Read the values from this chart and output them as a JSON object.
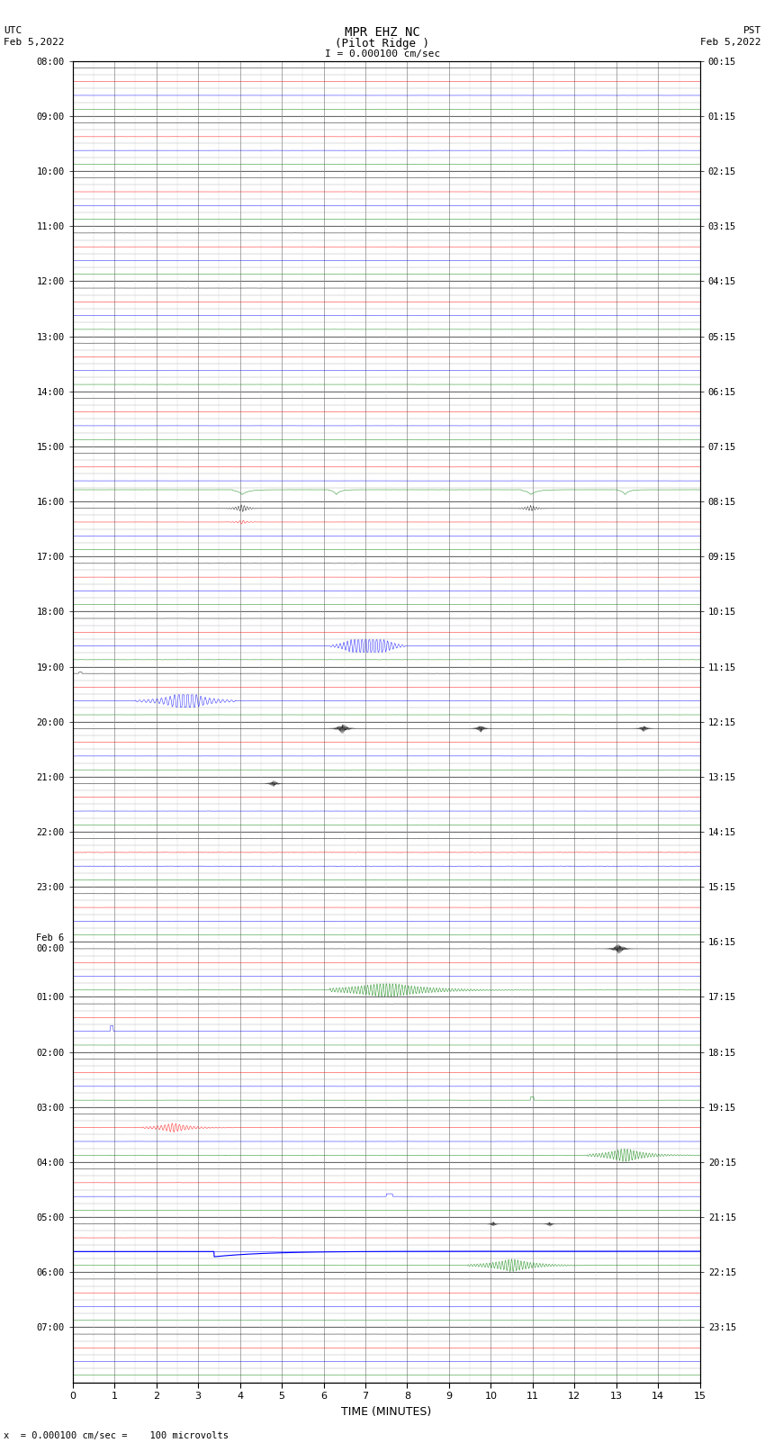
{
  "title_line1": "MPR EHZ NC",
  "title_line2": "(Pilot Ridge )",
  "title_line3": "I = 0.000100 cm/sec",
  "left_header_line1": "UTC",
  "left_header_line2": "Feb 5,2022",
  "right_header_line1": "PST",
  "right_header_line2": "Feb 5,2022",
  "xlabel": "TIME (MINUTES)",
  "footer": "x  = 0.000100 cm/sec =    100 microvolts",
  "utc_labels_left": [
    "08:00",
    "09:00",
    "10:00",
    "11:00",
    "12:00",
    "13:00",
    "14:00",
    "15:00",
    "16:00",
    "17:00",
    "18:00",
    "19:00",
    "20:00",
    "21:00",
    "22:00",
    "23:00",
    "Feb 6\n00:00",
    "01:00",
    "02:00",
    "03:00",
    "04:00",
    "05:00",
    "06:00",
    "07:00"
  ],
  "pst_labels_right": [
    "00:15",
    "01:15",
    "02:15",
    "03:15",
    "04:15",
    "05:15",
    "06:15",
    "07:15",
    "08:15",
    "09:15",
    "10:15",
    "11:15",
    "12:15",
    "13:15",
    "14:15",
    "15:15",
    "16:15",
    "17:15",
    "18:15",
    "19:15",
    "20:15",
    "21:15",
    "22:15",
    "23:15"
  ],
  "n_hours": 24,
  "subrows_per_hour": 4,
  "minutes_per_row": 15,
  "bg_color": "#ffffff",
  "figsize": [
    8.5,
    16.13
  ],
  "row_colors": [
    "black",
    "red",
    "blue",
    "green"
  ]
}
